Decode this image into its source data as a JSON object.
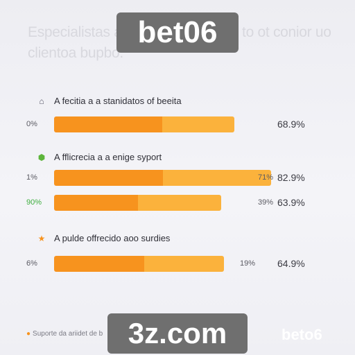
{
  "header": {
    "title": "Especialistas a bet06 orde gralitie to ot conior uo clientoa bupbo.",
    "watermark_top": "bet06"
  },
  "footer": {
    "text": "Suporte da ariidet de b",
    "watermark_bottom": "3z.com",
    "brand": "beto6"
  },
  "colors": {
    "bar_dark": "#f7931e",
    "bar_light": "#fbb23c"
  },
  "chart_data": {
    "type": "bar",
    "orientation": "horizontal",
    "title": "",
    "sections": [
      {
        "label": "A fecitia a a stanidatos of beeita",
        "icon": "house-icon",
        "icon_color": "#555566",
        "rows": [
          {
            "left_label": "0%",
            "mid_label": "",
            "value": 68.9,
            "value_label": "68.9%",
            "segment": 0.6
          }
        ]
      },
      {
        "label": "A fflicrecia a a enige syport",
        "icon": "hexagon-icon",
        "icon_color": "#5db53b",
        "rows": [
          {
            "left_label": "1%",
            "mid_label": "71%",
            "value": 82.9,
            "value_label": "82.9%",
            "segment": 0.5
          },
          {
            "left_label": "90%",
            "mid_label": "39%",
            "value": 63.9,
            "value_label": "63.9%",
            "segment": 0.5,
            "left_color": "#3fae3f"
          }
        ]
      },
      {
        "label": "A pulde offrecido aoo surdies",
        "icon": "star-icon",
        "icon_color": "#f7931e",
        "rows": [
          {
            "left_label": "6%",
            "mid_label": "19%",
            "value": 64.9,
            "value_label": "64.9%",
            "segment": 0.53
          }
        ]
      }
    ]
  }
}
